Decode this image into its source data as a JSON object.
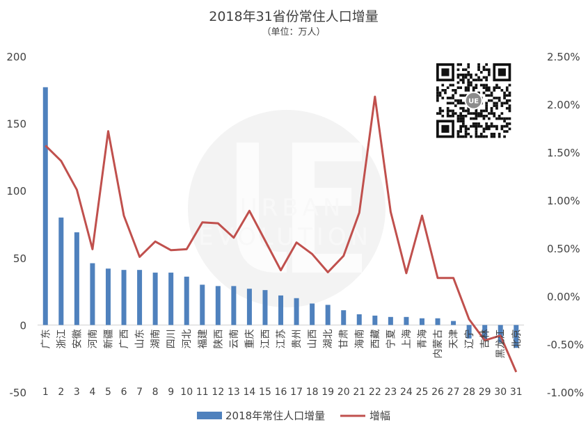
{
  "chart_data": {
    "type": "bar+line",
    "title": "2018年31省份常住人口增量",
    "subtitle": "（单位：万人）",
    "categories": [
      "广东",
      "浙江",
      "安徽",
      "河南",
      "新疆",
      "广西",
      "山东",
      "湖南",
      "四川",
      "河北",
      "福建",
      "陕西",
      "云南",
      "重庆",
      "江西",
      "江苏",
      "贵州",
      "山西",
      "湖北",
      "甘肃",
      "海南",
      "西藏",
      "宁夏",
      "上海",
      "青海",
      "内蒙古",
      "天津",
      "辽宁",
      "吉林",
      "黑龙江",
      "北京"
    ],
    "rank_labels": [
      "1",
      "2",
      "3",
      "4",
      "5",
      "6",
      "7",
      "8",
      "9",
      "10",
      "11",
      "12",
      "13",
      "14",
      "15",
      "16",
      "17",
      "18",
      "19",
      "20",
      "21",
      "22",
      "23",
      "24",
      "25",
      "26",
      "27",
      "28",
      "29",
      "30",
      "31"
    ],
    "y_left": {
      "min": -50,
      "max": 200,
      "ticks": [
        "-50",
        "0",
        "50",
        "100",
        "150",
        "200"
      ]
    },
    "y_right": {
      "min": -1.0,
      "max": 2.5,
      "ticks": [
        "-1.00%",
        "-0.50%",
        "0.00%",
        "0.50%",
        "1.00%",
        "1.50%",
        "2.00%",
        "2.50%"
      ]
    },
    "series": [
      {
        "name": "2018年常住人口增量",
        "type": "bar",
        "axis": "left",
        "color": "#4F81BD",
        "values": [
          177,
          80,
          69,
          46,
          42,
          41,
          41,
          39,
          39,
          36,
          30,
          29,
          29,
          27,
          26,
          22,
          20,
          16,
          15,
          11,
          8,
          7,
          6,
          6,
          5,
          5,
          3,
          -10,
          -11,
          -13,
          -17
        ]
      },
      {
        "name": "增幅",
        "type": "line",
        "axis": "right",
        "color": "#C0504D",
        "values": [
          1.57,
          1.41,
          1.11,
          0.49,
          1.72,
          0.84,
          0.41,
          0.57,
          0.48,
          0.49,
          0.77,
          0.76,
          0.61,
          0.89,
          0.58,
          0.27,
          0.56,
          0.44,
          0.25,
          0.42,
          0.87,
          2.08,
          0.88,
          0.24,
          0.84,
          0.19,
          0.19,
          -0.24,
          -0.46,
          -0.41,
          -0.79
        ]
      }
    ],
    "legend_position": "bottom",
    "grid": false
  },
  "watermark": {
    "text_line1": "URBAN",
    "text_line2": "EVOLUTION",
    "logo": "UE"
  }
}
